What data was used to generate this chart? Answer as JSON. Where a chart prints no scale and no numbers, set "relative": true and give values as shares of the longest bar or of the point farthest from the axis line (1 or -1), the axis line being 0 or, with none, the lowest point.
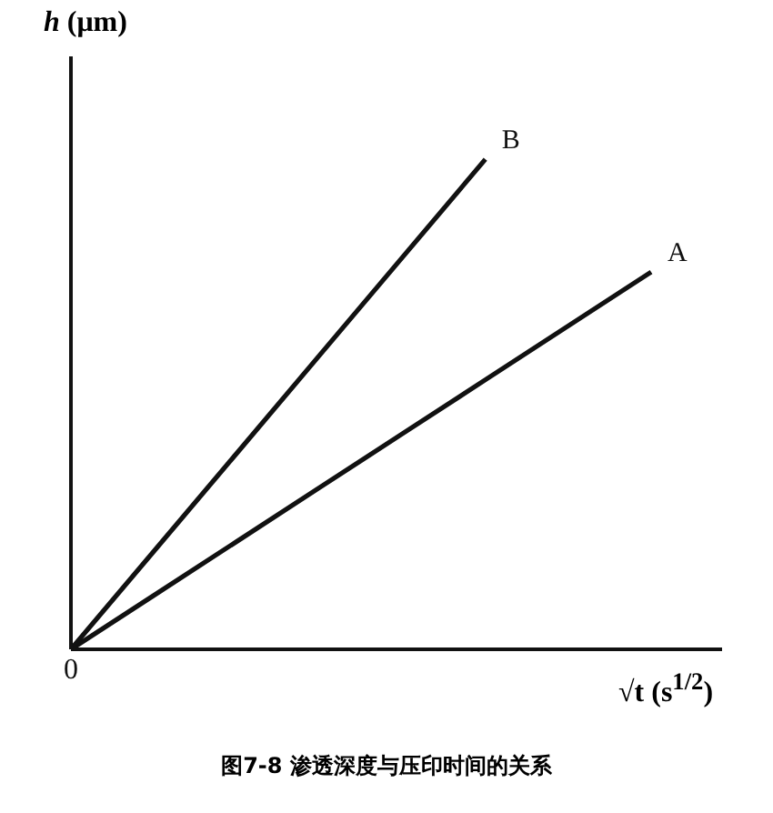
{
  "chart_data": {
    "type": "line",
    "title": "图7-8 渗透深度与压印时间的关系",
    "xlabel": "√t (s$^{1/2}$)",
    "ylabel": "h (μm)",
    "relative": true,
    "categories": [
      null,
      null,
      null,
      null,
      null,
      null,
      null,
      null
    ],
    "series": [
      {
        "name": "A",
        "color": "#111111",
        "values": [
          0,
          0.11,
          0.22,
          0.33,
          0.44,
          0.55,
          0.66,
          0.77
        ]
      },
      {
        "name": "B",
        "color": "#111111",
        "values": [
          0,
          0.2,
          0.4,
          0.6,
          0.8,
          1,
          null,
          null
        ]
      }
    ],
    "annotations": [
      "0"
    ],
    "marker": "none",
    "line_style": "solid"
  }
}
